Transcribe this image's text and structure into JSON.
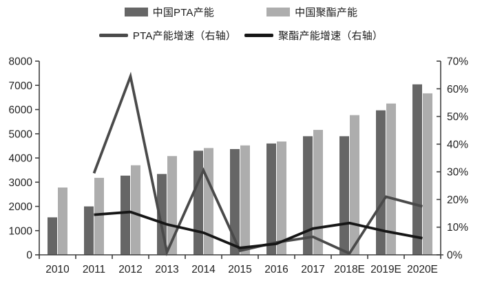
{
  "legend": {
    "items": [
      {
        "label": "中国PTA产能",
        "swatch": "bar",
        "color": "#666666"
      },
      {
        "label": "中国聚酯产能",
        "swatch": "bar",
        "color": "#adadad"
      },
      {
        "label": "PTA产能增速（右轴）",
        "swatch": "line",
        "color": "#4a4a4a"
      },
      {
        "label": "聚酯产能增速（右轴）",
        "swatch": "line",
        "color": "#161616"
      }
    ]
  },
  "chart_data": {
    "type": "bar+line combo",
    "title": "",
    "categories": [
      "2010",
      "2011",
      "2012",
      "2013",
      "2014",
      "2015",
      "2016",
      "2017",
      "2018E",
      "2019E",
      "2020E"
    ],
    "series": [
      {
        "key": "pta_capacity",
        "name": "中国PTA产能",
        "type": "bar",
        "axis": "left",
        "color": "#666666",
        "values": [
          1550,
          2000,
          3270,
          3340,
          4300,
          4370,
          4600,
          4900,
          4900,
          5970,
          7040
        ]
      },
      {
        "key": "polyester_capacity",
        "name": "中国聚酯产能",
        "type": "bar",
        "axis": "left",
        "color": "#adadad",
        "values": [
          2780,
          3180,
          3700,
          4080,
          4410,
          4520,
          4680,
          5160,
          5770,
          6250,
          6670
        ]
      },
      {
        "key": "pta_growth",
        "name": "PTA产能增速（右轴）",
        "type": "line",
        "axis": "right",
        "color": "#4a4a4a",
        "values": [
          null,
          29.5,
          64.5,
          1,
          30.5,
          1.5,
          4.5,
          6.5,
          0.5,
          21,
          17.5
        ]
      },
      {
        "key": "polyester_growth",
        "name": "聚酯产能增速（右轴）",
        "type": "line",
        "axis": "right",
        "color": "#161616",
        "values": [
          null,
          14.5,
          15.5,
          11,
          8,
          2.5,
          4,
          9.5,
          11.5,
          8.5,
          6
        ]
      }
    ],
    "left_axis": {
      "min": 0,
      "max": 8000,
      "step": 1000,
      "tick_labels": [
        "0",
        "1000",
        "2000",
        "3000",
        "4000",
        "5000",
        "6000",
        "7000",
        "8000"
      ]
    },
    "right_axis": {
      "min": 0,
      "max": 70,
      "step": 10,
      "unit": "%",
      "tick_labels": [
        "0%",
        "10%",
        "20%",
        "30%",
        "40%",
        "50%",
        "60%",
        "70%"
      ]
    },
    "grid": false,
    "legend_position": "top"
  }
}
